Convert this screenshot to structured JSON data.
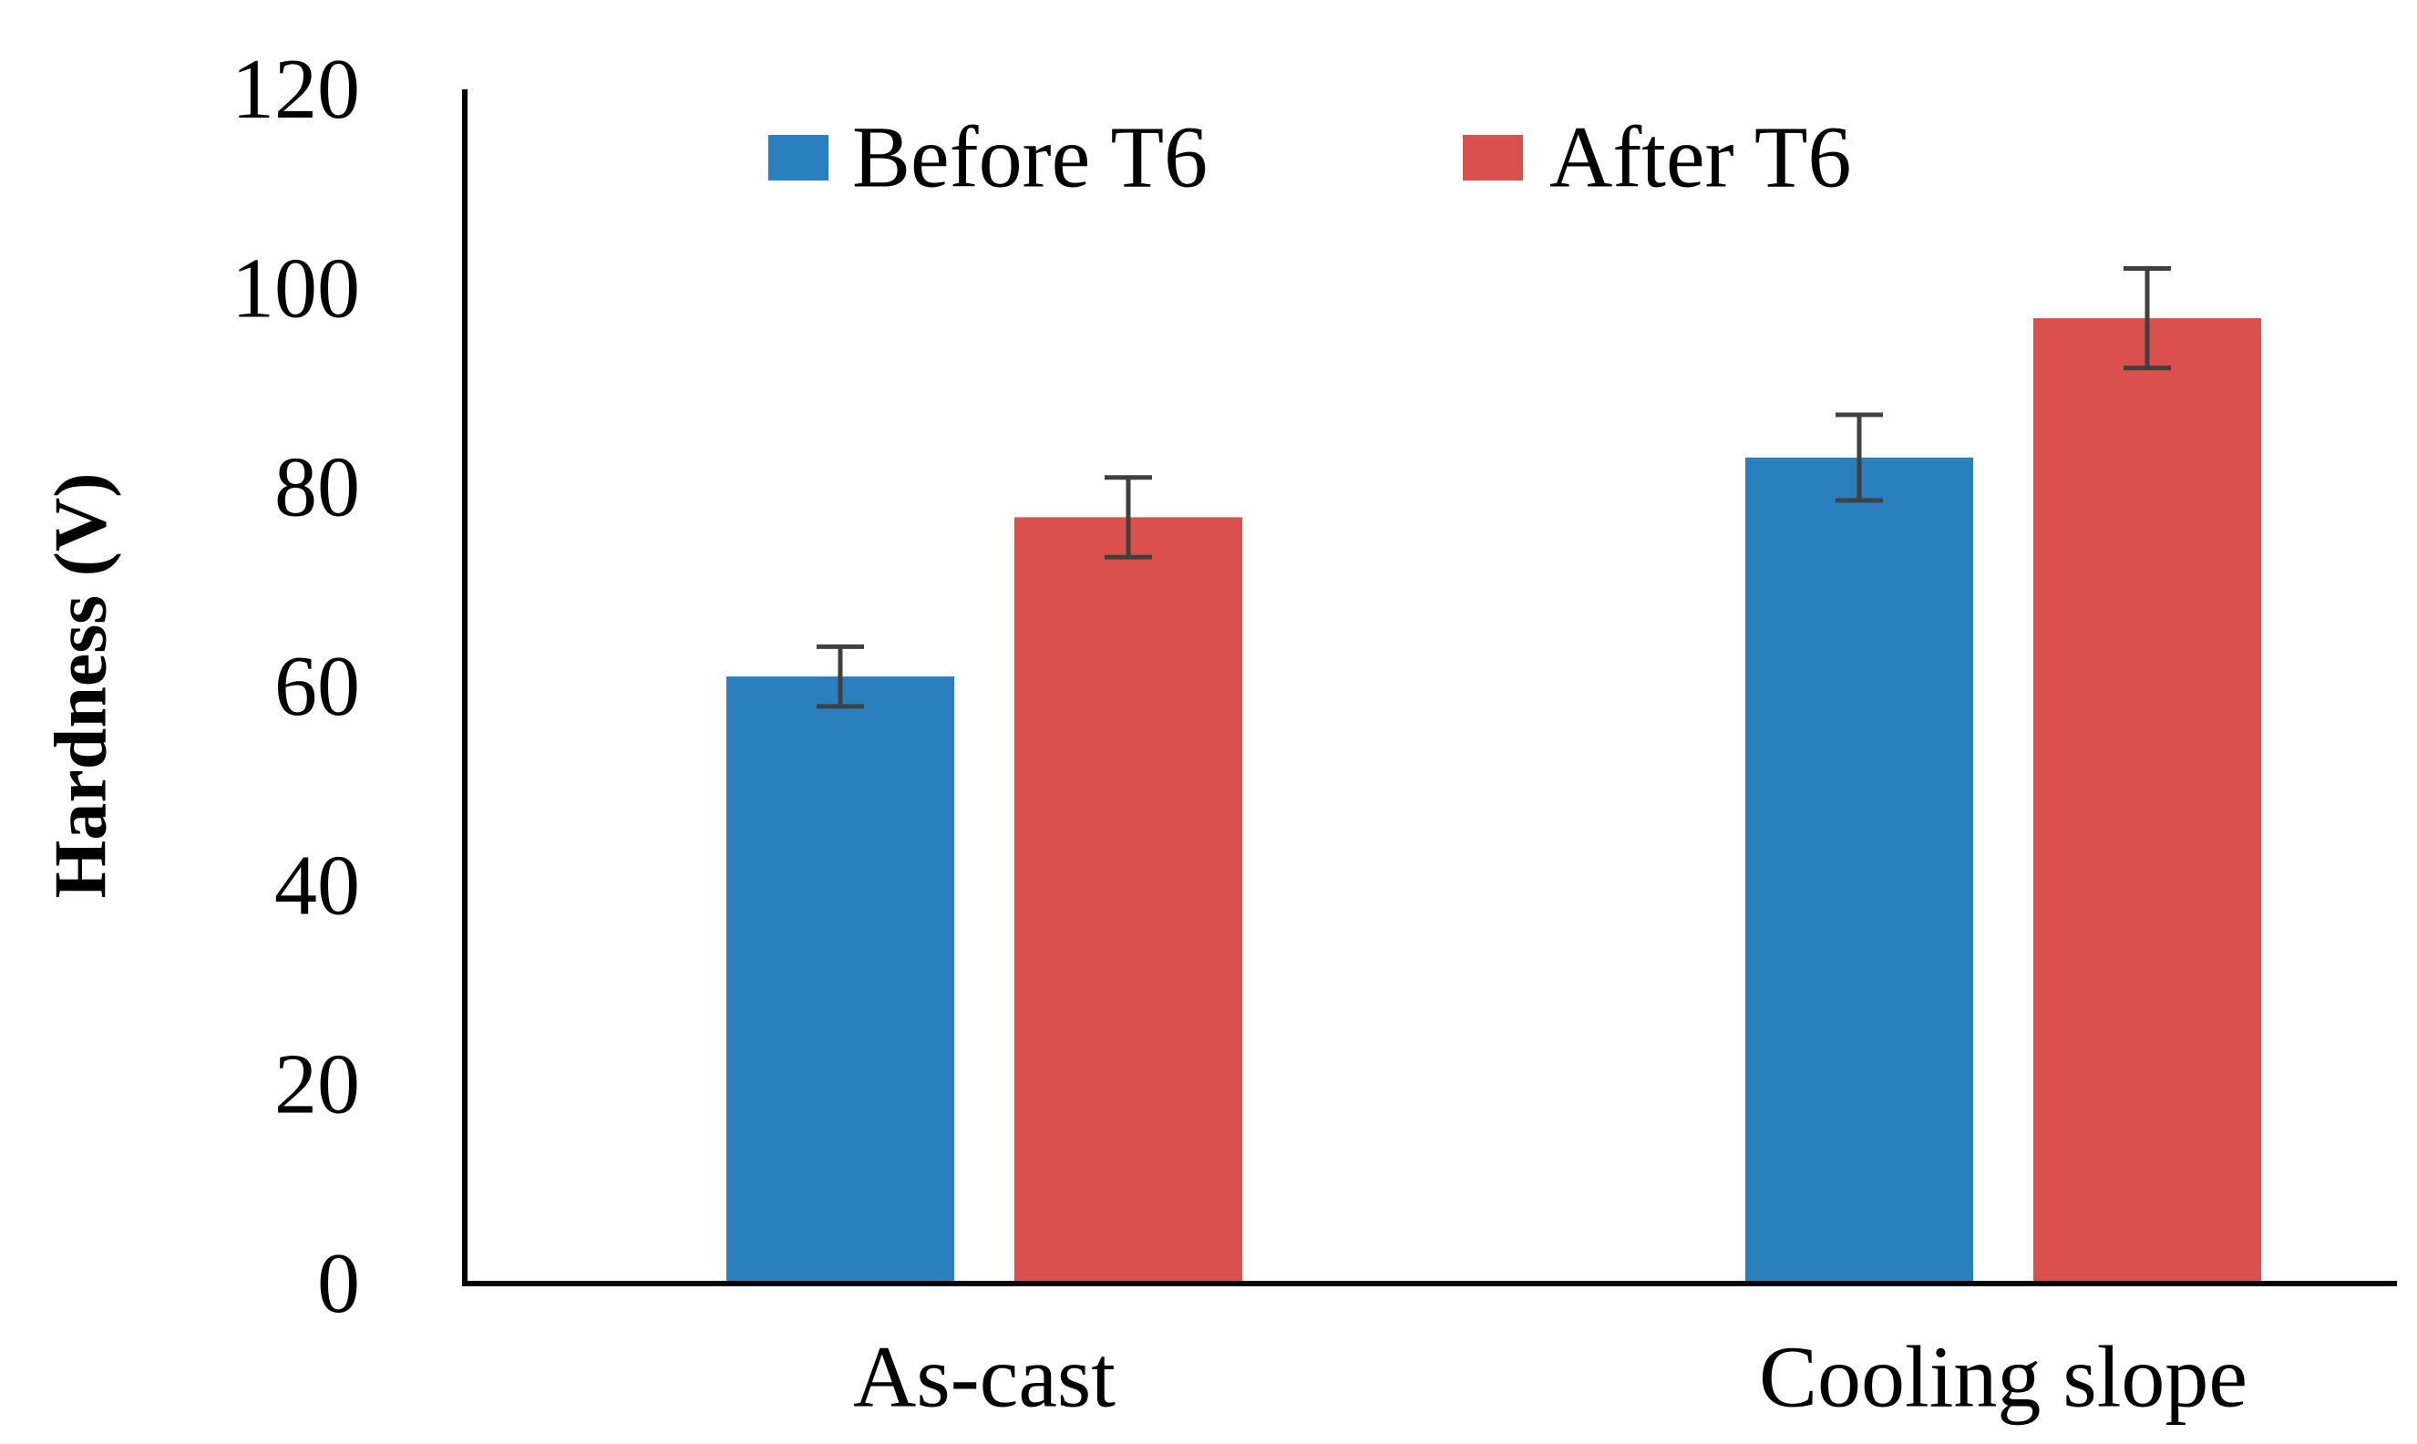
{
  "chart_data": {
    "type": "bar",
    "title": "",
    "xlabel": "",
    "ylabel": "Hardness (V)",
    "ylim": [
      0,
      120
    ],
    "yticks": [
      0,
      20,
      40,
      60,
      80,
      100,
      120
    ],
    "yticks_text": [
      "0",
      "20",
      "40",
      "60",
      "80",
      "100",
      "120"
    ],
    "grid": false,
    "legend_position": "top-center",
    "categories": [
      "As-cast",
      "Cooling slope"
    ],
    "series": [
      {
        "name": "Before T6",
        "color": "#2A7FBF",
        "values": [
          61,
          83
        ],
        "error": [
          3,
          4.3
        ]
      },
      {
        "name": "After T6",
        "color": "#D9504C",
        "values": [
          77,
          97
        ],
        "error": [
          4,
          5
        ]
      }
    ]
  }
}
